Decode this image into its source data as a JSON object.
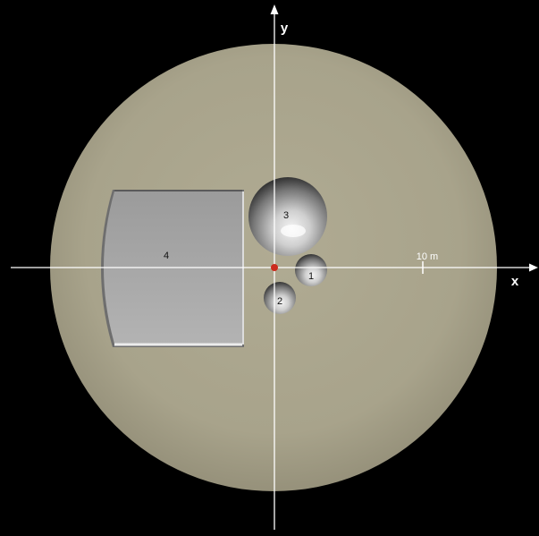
{
  "axes": {
    "x_label": "x",
    "y_label": "y"
  },
  "scale_bar": {
    "label": "10 m"
  },
  "regions": [
    {
      "id": "1",
      "label": "1",
      "shape": "circular-pit"
    },
    {
      "id": "2",
      "label": "2",
      "shape": "circular-pit"
    },
    {
      "id": "3",
      "label": "3",
      "shape": "circular-pit"
    },
    {
      "id": "4",
      "label": "4",
      "shape": "flat-bottomed-recess"
    }
  ],
  "colors": {
    "background": "#000000",
    "disk": "#a9a48b",
    "recess_fill": "#a7a7a7",
    "axis": "#ffffff",
    "origin_marker": "#cc2b1d"
  }
}
